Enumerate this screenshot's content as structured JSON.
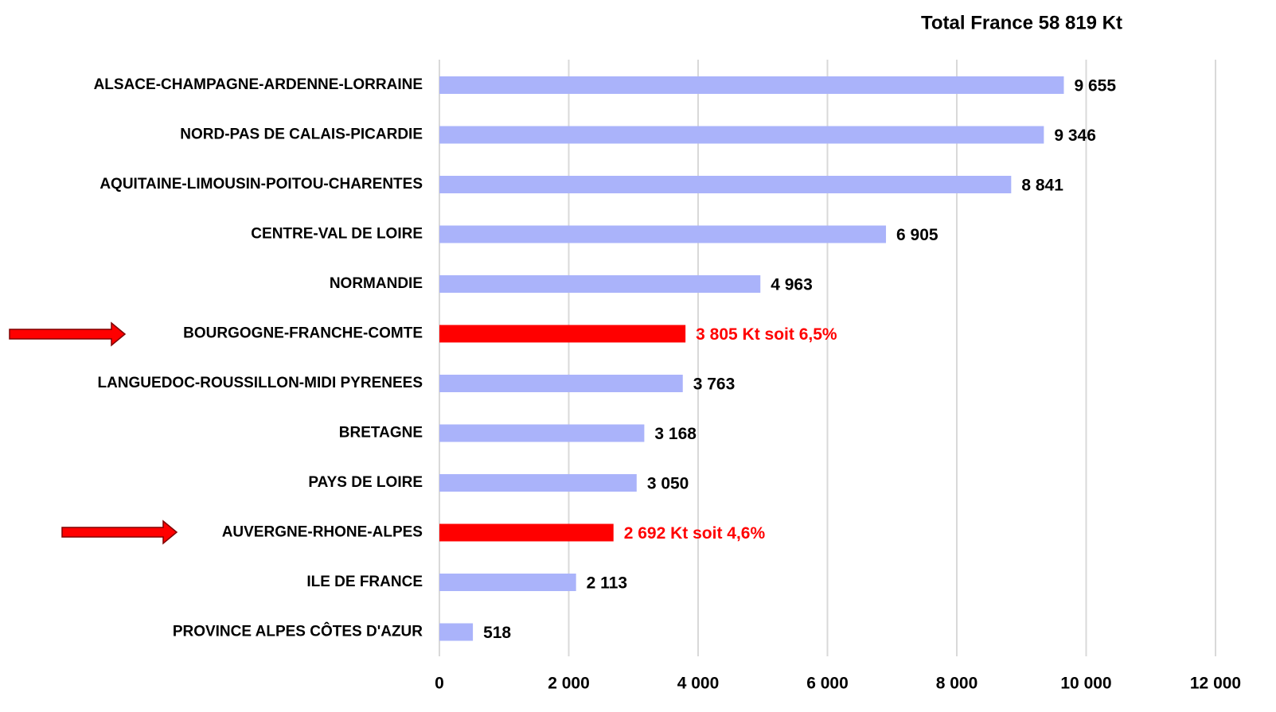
{
  "chart_data": {
    "type": "barh",
    "title": "Total France  58 819 Kt",
    "categories": [
      "ALSACE-CHAMPAGNE-ARDENNE-LORRAINE",
      "NORD-PAS DE CALAIS-PICARDIE",
      "AQUITAINE-LIMOUSIN-POITOU-CHARENTES",
      "CENTRE-VAL DE LOIRE",
      "NORMANDIE",
      "BOURGOGNE-FRANCHE-COMTE",
      "LANGUEDOC-ROUSSILLON-MIDI PYRENEES",
      "BRETAGNE",
      "PAYS DE LOIRE",
      "AUVERGNE-RHONE-ALPES",
      "ILE DE FRANCE",
      "PROVINCE ALPES CÔTES D'AZUR"
    ],
    "values": [
      9655,
      9346,
      8841,
      6905,
      4963,
      3805,
      3763,
      3168,
      3050,
      2692,
      2113,
      518
    ],
    "value_labels": [
      "9 655",
      "9 346",
      "8 841",
      "6 905",
      "4 963",
      "3 805 Kt soit 6,5%",
      "3 763",
      "3 168",
      "3 050",
      "2 692 Kt soit 4,6%",
      "2 113",
      "518"
    ],
    "colors": [
      "#aab3fa",
      "#aab3fa",
      "#aab3fa",
      "#aab3fa",
      "#aab3fa",
      "#ff0000",
      "#aab3fa",
      "#aab3fa",
      "#aab3fa",
      "#ff0000",
      "#aab3fa",
      "#aab3fa"
    ],
    "value_label_colors": [
      "#000000",
      "#000000",
      "#000000",
      "#000000",
      "#000000",
      "#ff0000",
      "#000000",
      "#000000",
      "#000000",
      "#ff0000",
      "#000000",
      "#000000"
    ],
    "xlim": [
      0,
      12000
    ],
    "xticks": [
      0,
      {
        "value": 2000,
        "label": "2 000"
      },
      {
        "value": 4000,
        "label": "4 000"
      },
      {
        "value": 6000,
        "label": "6 000"
      },
      {
        "value": 8000,
        "label": "8 000"
      },
      {
        "value": 10000,
        "label": "10 000"
      },
      {
        "value": 12000,
        "label": "12 000"
      }
    ],
    "grid": true
  }
}
